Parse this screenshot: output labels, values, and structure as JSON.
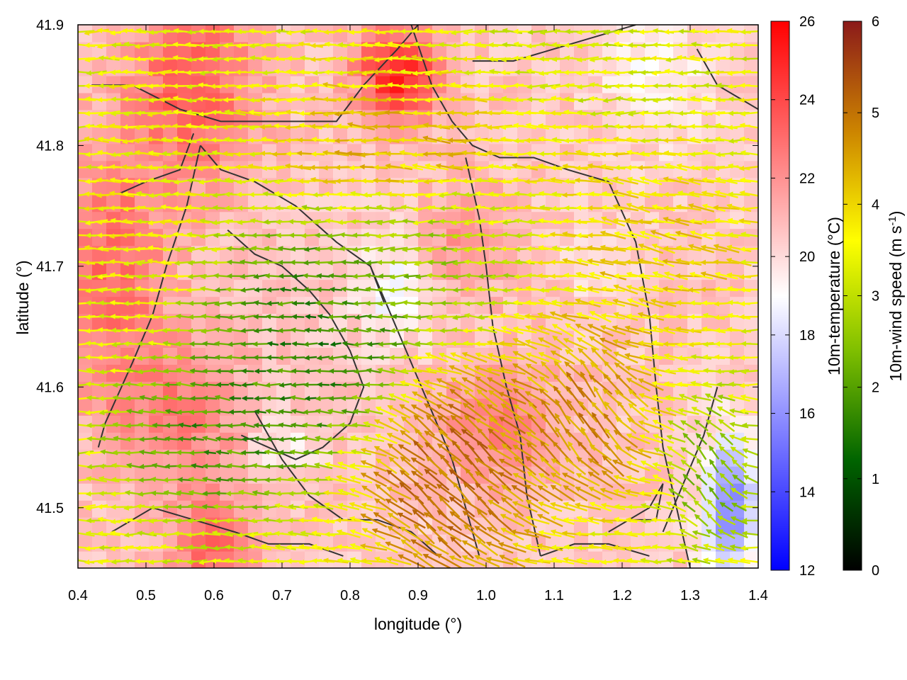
{
  "chart_data": {
    "type": "heatmap",
    "title": "",
    "xlabel": "longitude (°)",
    "ylabel": "latitude (°)",
    "xlim": [
      0.4,
      1.4
    ],
    "ylim": [
      41.45,
      41.9
    ],
    "xticks": [
      0.4,
      0.5,
      0.6,
      0.7,
      0.8,
      0.9,
      1.0,
      1.1,
      1.2,
      1.3,
      1.4
    ],
    "xtick_labels": [
      "0.4",
      "0.5",
      "0.6",
      "0.7",
      "0.8",
      "0.9",
      "1.0",
      "1.1",
      "1.2",
      "1.3",
      "1.4"
    ],
    "yticks": [
      41.5,
      41.6,
      41.7,
      41.8,
      41.9
    ],
    "ytick_labels": [
      "41.5",
      "41.6",
      "41.7",
      "41.8",
      "41.9"
    ],
    "grid": false,
    "temperature_colorbar": {
      "label": "10m-temperature (°C)",
      "range": [
        12,
        26
      ],
      "ticks": [
        12,
        14,
        16,
        18,
        20,
        22,
        24,
        26
      ],
      "tick_labels": [
        "12",
        "14",
        "16",
        "18",
        "20",
        "22",
        "24",
        "26"
      ],
      "colors": [
        "#0000ff",
        "#ffffff",
        "#ff0000"
      ],
      "center": 19
    },
    "windspeed_colorbar": {
      "label_main": "10m-wind speed (m s",
      "label_sup": "-1",
      "label_end": ")",
      "range": [
        0,
        6
      ],
      "ticks": [
        0,
        1,
        2,
        3,
        4,
        5,
        6
      ],
      "tick_labels": [
        "0",
        "1",
        "2",
        "3",
        "4",
        "5",
        "6"
      ],
      "colors": [
        "#000000",
        "#006400",
        "#7fbf00",
        "#ffff00",
        "#cc8400",
        "#8b1a1a"
      ]
    },
    "temperature_regions": [
      {
        "lon": 0.57,
        "lat": 41.85,
        "sx": 0.09,
        "sy": 0.08,
        "dT": 3.0
      },
      {
        "lon": 0.45,
        "lat": 41.7,
        "sx": 0.08,
        "sy": 0.1,
        "dT": 2.5
      },
      {
        "lon": 0.87,
        "lat": 41.86,
        "sx": 0.06,
        "sy": 0.04,
        "dT": 4.5
      },
      {
        "lon": 0.55,
        "lat": 41.58,
        "sx": 0.1,
        "sy": 0.06,
        "dT": 2.0
      },
      {
        "lon": 0.6,
        "lat": 41.47,
        "sx": 0.06,
        "sy": 0.04,
        "dT": 3.0
      },
      {
        "lon": 1.02,
        "lat": 41.57,
        "sx": 0.09,
        "sy": 0.05,
        "dT": 2.0
      },
      {
        "lon": 0.97,
        "lat": 41.72,
        "sx": 0.06,
        "sy": 0.05,
        "dT": 1.5
      },
      {
        "lon": 1.25,
        "lat": 41.85,
        "sx": 0.08,
        "sy": 0.05,
        "dT": -1.5
      },
      {
        "lon": 1.36,
        "lat": 41.5,
        "sx": 0.04,
        "sy": 0.06,
        "dT": -5.0
      },
      {
        "lon": 0.87,
        "lat": 41.68,
        "sx": 0.06,
        "sy": 0.04,
        "dT": -1.8
      },
      {
        "lon": 0.7,
        "lat": 41.55,
        "sx": 0.05,
        "sy": 0.03,
        "dT": -1.2
      },
      {
        "lon": 1.17,
        "lat": 41.7,
        "sx": 0.05,
        "sy": 0.03,
        "dT": -1.0
      }
    ],
    "wind_regions": [
      {
        "lon": 0.75,
        "lat": 41.64,
        "sx": 0.12,
        "sy": 0.07,
        "dir": 180,
        "speed": 1.3,
        "w": 3.0
      },
      {
        "lon": 0.6,
        "lat": 41.56,
        "sx": 0.1,
        "sy": 0.05,
        "dir": 170,
        "speed": 1.4,
        "w": 2.0
      },
      {
        "lon": 0.93,
        "lat": 41.71,
        "sx": 0.1,
        "sy": 0.05,
        "dir": 185,
        "speed": 2.6,
        "w": 2.0
      },
      {
        "lon": 0.88,
        "lat": 41.8,
        "sx": 0.15,
        "sy": 0.05,
        "dir": 175,
        "speed": 4.6,
        "w": 1.5
      },
      {
        "lon": 0.5,
        "lat": 41.78,
        "sx": 0.1,
        "sy": 0.1,
        "dir": 180,
        "speed": 3.6,
        "w": 1.5
      },
      {
        "lon": 0.95,
        "lat": 41.53,
        "sx": 0.1,
        "sy": 0.07,
        "dir": 120,
        "speed": 5.3,
        "w": 3.0
      },
      {
        "lon": 1.15,
        "lat": 41.58,
        "sx": 0.08,
        "sy": 0.06,
        "dir": 100,
        "speed": 5.0,
        "w": 2.0
      },
      {
        "lon": 1.25,
        "lat": 41.72,
        "sx": 0.12,
        "sy": 0.06,
        "dir": 160,
        "speed": 4.2,
        "w": 1.5
      },
      {
        "lon": 1.33,
        "lat": 41.53,
        "sx": 0.05,
        "sy": 0.05,
        "dir": 90,
        "speed": 2.0,
        "w": 1.5
      },
      {
        "lon": 1.1,
        "lat": 41.87,
        "sx": 0.12,
        "sy": 0.04,
        "dir": 180,
        "speed": 3.2,
        "w": 1.0
      }
    ],
    "boundaries": [
      [
        [
          0.42,
          41.85
        ],
        [
          0.48,
          41.85
        ],
        [
          0.55,
          41.83
        ],
        [
          0.61,
          41.82
        ],
        [
          0.7,
          41.82
        ],
        [
          0.78,
          41.82
        ],
        [
          0.82,
          41.85
        ],
        [
          0.87,
          41.88
        ],
        [
          0.9,
          41.9
        ]
      ],
      [
        [
          0.58,
          41.8
        ],
        [
          0.56,
          41.75
        ],
        [
          0.53,
          41.7
        ],
        [
          0.51,
          41.66
        ],
        [
          0.48,
          41.62
        ],
        [
          0.44,
          41.57
        ],
        [
          0.43,
          41.55
        ]
      ],
      [
        [
          0.58,
          41.8
        ],
        [
          0.61,
          41.78
        ],
        [
          0.66,
          41.77
        ],
        [
          0.72,
          41.75
        ],
        [
          0.78,
          41.72
        ],
        [
          0.83,
          41.7
        ],
        [
          0.85,
          41.67
        ]
      ],
      [
        [
          0.62,
          41.73
        ],
        [
          0.66,
          41.71
        ],
        [
          0.7,
          41.7
        ],
        [
          0.74,
          41.68
        ],
        [
          0.77,
          41.66
        ],
        [
          0.8,
          41.63
        ],
        [
          0.82,
          41.6
        ],
        [
          0.8,
          41.57
        ],
        [
          0.76,
          41.55
        ],
        [
          0.72,
          41.54
        ],
        [
          0.68,
          41.55
        ],
        [
          0.64,
          41.56
        ]
      ],
      [
        [
          0.89,
          41.9
        ],
        [
          0.92,
          41.85
        ],
        [
          0.95,
          41.82
        ],
        [
          0.98,
          41.8
        ],
        [
          1.02,
          41.79
        ],
        [
          1.07,
          41.79
        ],
        [
          1.12,
          41.78
        ],
        [
          1.18,
          41.77
        ],
        [
          1.22,
          41.72
        ],
        [
          1.24,
          41.66
        ],
        [
          1.25,
          41.6
        ],
        [
          1.26,
          41.55
        ],
        [
          1.28,
          41.5
        ],
        [
          1.3,
          41.45
        ]
      ],
      [
        [
          0.97,
          41.79
        ],
        [
          0.99,
          41.74
        ],
        [
          1.0,
          41.7
        ],
        [
          1.01,
          41.65
        ],
        [
          1.03,
          41.6
        ],
        [
          1.05,
          41.56
        ],
        [
          1.06,
          41.51
        ],
        [
          1.08,
          41.46
        ]
      ],
      [
        [
          0.83,
          41.7
        ],
        [
          0.86,
          41.66
        ],
        [
          0.89,
          41.62
        ],
        [
          0.92,
          41.58
        ],
        [
          0.95,
          41.54
        ],
        [
          0.97,
          41.5
        ],
        [
          0.99,
          41.46
        ]
      ],
      [
        [
          0.66,
          41.58
        ],
        [
          0.7,
          41.54
        ],
        [
          0.74,
          41.51
        ],
        [
          0.79,
          41.49
        ],
        [
          0.84,
          41.49
        ],
        [
          0.89,
          41.48
        ],
        [
          0.93,
          41.46
        ]
      ],
      [
        [
          0.45,
          41.48
        ],
        [
          0.51,
          41.5
        ],
        [
          0.57,
          41.49
        ],
        [
          0.63,
          41.48
        ],
        [
          0.68,
          41.47
        ],
        [
          0.74,
          41.47
        ],
        [
          0.79,
          41.46
        ]
      ],
      [
        [
          0.46,
          41.76
        ],
        [
          0.5,
          41.77
        ],
        [
          0.55,
          41.78
        ],
        [
          0.57,
          41.81
        ]
      ],
      [
        [
          0.98,
          41.87
        ],
        [
          1.04,
          41.87
        ],
        [
          1.1,
          41.88
        ],
        [
          1.16,
          41.89
        ],
        [
          1.22,
          41.9
        ]
      ],
      [
        [
          1.31,
          41.88
        ],
        [
          1.34,
          41.85
        ],
        [
          1.37,
          41.84
        ],
        [
          1.4,
          41.83
        ]
      ],
      [
        [
          1.34,
          41.6
        ],
        [
          1.32,
          41.56
        ],
        [
          1.29,
          41.52
        ],
        [
          1.26,
          41.48
        ]
      ],
      [
        [
          1.18,
          41.48
        ],
        [
          1.24,
          41.5
        ],
        [
          1.26,
          41.52
        ],
        [
          1.25,
          41.49
        ],
        [
          1.21,
          41.49
        ]
      ],
      [
        [
          1.08,
          41.46
        ],
        [
          1.13,
          41.47
        ],
        [
          1.18,
          41.47
        ],
        [
          1.24,
          41.46
        ]
      ]
    ]
  }
}
